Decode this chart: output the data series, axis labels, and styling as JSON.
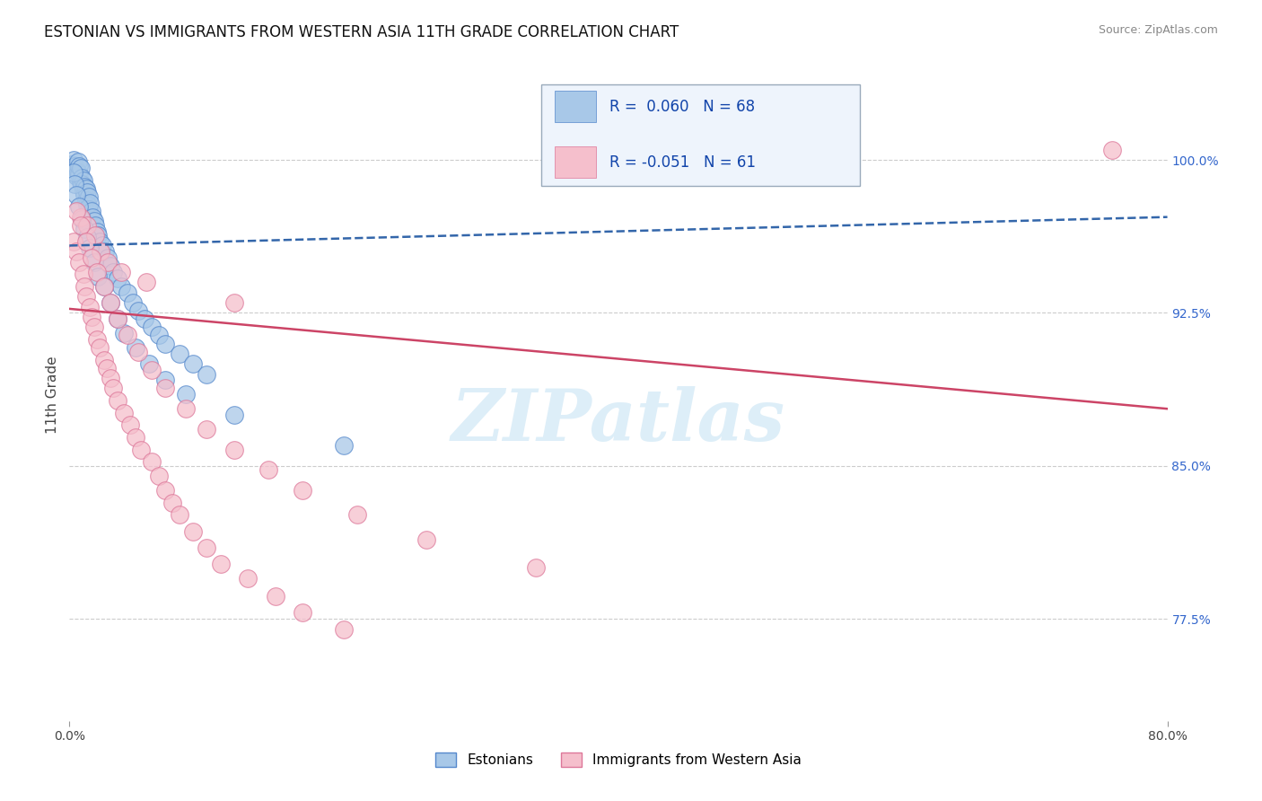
{
  "title": "ESTONIAN VS IMMIGRANTS FROM WESTERN ASIA 11TH GRADE CORRELATION CHART",
  "source": "Source: ZipAtlas.com",
  "ylabel": "11th Grade",
  "ytick_labels": [
    "100.0%",
    "92.5%",
    "85.0%",
    "77.5%"
  ],
  "ytick_values": [
    1.0,
    0.925,
    0.85,
    0.775
  ],
  "xmin": 0.0,
  "xmax": 0.8,
  "ymin": 0.725,
  "ymax": 1.045,
  "blue_R": 0.06,
  "blue_N": 68,
  "pink_R": -0.051,
  "pink_N": 61,
  "blue_color": "#a8c8e8",
  "pink_color": "#f5bfcc",
  "blue_edge": "#5588cc",
  "pink_edge": "#dd7799",
  "trend_blue_color": "#3366aa",
  "trend_pink_color": "#cc4466",
  "watermark_text": "ZIPatlas",
  "watermark_color": "#ddeef8",
  "legend_box_color": "#eef4fc",
  "legend_border_color": "#99aabb",
  "grid_color": "#cccccc",
  "blue_trend_x": [
    0.0,
    0.8
  ],
  "blue_trend_y": [
    0.958,
    0.972
  ],
  "pink_trend_x": [
    0.0,
    0.8
  ],
  "pink_trend_y": [
    0.927,
    0.878
  ],
  "blue_scatter_x": [
    0.002,
    0.003,
    0.004,
    0.005,
    0.005,
    0.006,
    0.006,
    0.007,
    0.007,
    0.008,
    0.008,
    0.009,
    0.009,
    0.01,
    0.01,
    0.011,
    0.011,
    0.012,
    0.012,
    0.013,
    0.013,
    0.014,
    0.014,
    0.015,
    0.016,
    0.017,
    0.018,
    0.019,
    0.02,
    0.021,
    0.022,
    0.024,
    0.026,
    0.028,
    0.03,
    0.032,
    0.035,
    0.038,
    0.042,
    0.046,
    0.05,
    0.055,
    0.06,
    0.065,
    0.07,
    0.08,
    0.09,
    0.1,
    0.003,
    0.004,
    0.005,
    0.007,
    0.009,
    0.011,
    0.013,
    0.015,
    0.018,
    0.021,
    0.025,
    0.03,
    0.035,
    0.04,
    0.048,
    0.058,
    0.07,
    0.085,
    0.12,
    0.2
  ],
  "blue_scatter_y": [
    0.998,
    1.0,
    0.997,
    0.995,
    0.992,
    0.999,
    0.994,
    0.993,
    0.997,
    0.989,
    0.996,
    0.991,
    0.988,
    0.99,
    0.985,
    0.987,
    0.983,
    0.986,
    0.98,
    0.984,
    0.978,
    0.982,
    0.976,
    0.979,
    0.975,
    0.972,
    0.97,
    0.968,
    0.965,
    0.963,
    0.96,
    0.958,
    0.955,
    0.952,
    0.948,
    0.945,
    0.942,
    0.938,
    0.935,
    0.93,
    0.926,
    0.922,
    0.918,
    0.914,
    0.91,
    0.905,
    0.9,
    0.895,
    0.994,
    0.988,
    0.983,
    0.977,
    0.971,
    0.966,
    0.962,
    0.957,
    0.95,
    0.943,
    0.938,
    0.93,
    0.922,
    0.915,
    0.908,
    0.9,
    0.892,
    0.885,
    0.875,
    0.86
  ],
  "pink_scatter_x": [
    0.003,
    0.005,
    0.007,
    0.008,
    0.01,
    0.011,
    0.012,
    0.013,
    0.015,
    0.016,
    0.018,
    0.019,
    0.02,
    0.022,
    0.023,
    0.025,
    0.027,
    0.028,
    0.03,
    0.032,
    0.035,
    0.038,
    0.04,
    0.044,
    0.048,
    0.052,
    0.056,
    0.06,
    0.065,
    0.07,
    0.075,
    0.08,
    0.09,
    0.1,
    0.11,
    0.12,
    0.13,
    0.15,
    0.17,
    0.2,
    0.005,
    0.008,
    0.012,
    0.016,
    0.02,
    0.025,
    0.03,
    0.035,
    0.042,
    0.05,
    0.06,
    0.07,
    0.085,
    0.1,
    0.12,
    0.145,
    0.17,
    0.21,
    0.26,
    0.34,
    0.76
  ],
  "pink_scatter_y": [
    0.96,
    0.955,
    0.95,
    0.972,
    0.944,
    0.938,
    0.933,
    0.968,
    0.928,
    0.923,
    0.918,
    0.963,
    0.912,
    0.908,
    0.955,
    0.902,
    0.898,
    0.95,
    0.893,
    0.888,
    0.882,
    0.945,
    0.876,
    0.87,
    0.864,
    0.858,
    0.94,
    0.852,
    0.845,
    0.838,
    0.832,
    0.826,
    0.818,
    0.81,
    0.802,
    0.93,
    0.795,
    0.786,
    0.778,
    0.77,
    0.975,
    0.968,
    0.96,
    0.952,
    0.945,
    0.938,
    0.93,
    0.922,
    0.914,
    0.906,
    0.897,
    0.888,
    0.878,
    0.868,
    0.858,
    0.848,
    0.838,
    0.826,
    0.814,
    0.8,
    1.005
  ]
}
